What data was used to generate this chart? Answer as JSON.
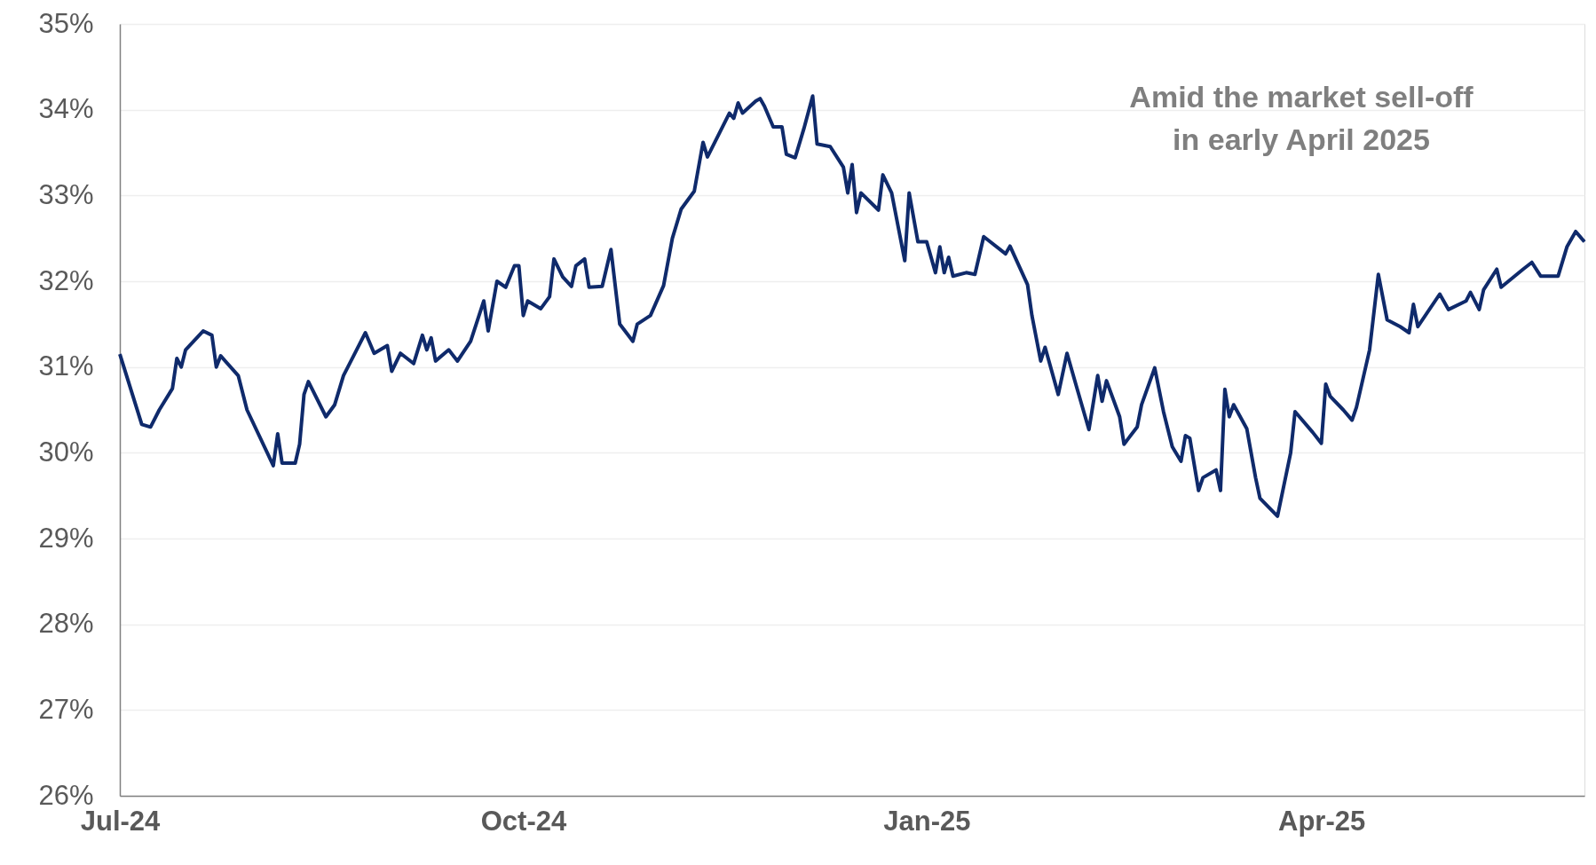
{
  "chart_data": {
    "type": "line",
    "annotations": [
      "Amid the market sell-off in early April 2025"
    ],
    "x": [
      "2024-07-01",
      "2024-07-06",
      "2024-07-08",
      "2024-07-10",
      "2024-07-13",
      "2024-07-14",
      "2024-07-15",
      "2024-07-16",
      "2024-07-20",
      "2024-07-22",
      "2024-07-23",
      "2024-07-24",
      "2024-07-28",
      "2024-07-30",
      "2024-08-05",
      "2024-08-06",
      "2024-08-07",
      "2024-08-10",
      "2024-08-11",
      "2024-08-12",
      "2024-08-13",
      "2024-08-17",
      "2024-08-19",
      "2024-08-21",
      "2024-08-24",
      "2024-08-26",
      "2024-08-28",
      "2024-08-31",
      "2024-09-01",
      "2024-09-03",
      "2024-09-06",
      "2024-09-08",
      "2024-09-09",
      "2024-09-10",
      "2024-09-11",
      "2024-09-14",
      "2024-09-16",
      "2024-09-19",
      "2024-09-22",
      "2024-09-23",
      "2024-09-25",
      "2024-09-27",
      "2024-09-29",
      "2024-09-30",
      "2024-10-01",
      "2024-10-02",
      "2024-10-05",
      "2024-10-07",
      "2024-10-08",
      "2024-10-10",
      "2024-10-12",
      "2024-10-13",
      "2024-10-15",
      "2024-10-16",
      "2024-10-19",
      "2024-10-21",
      "2024-10-23",
      "2024-10-26",
      "2024-10-27",
      "2024-10-30",
      "2024-11-02",
      "2024-11-04",
      "2024-11-06",
      "2024-11-09",
      "2024-11-11",
      "2024-11-12",
      "2024-11-17",
      "2024-11-18",
      "2024-11-19",
      "2024-11-20",
      "2024-11-23",
      "2024-11-24",
      "2024-11-25",
      "2024-11-27",
      "2024-11-29",
      "2024-11-30",
      "2024-12-02",
      "2024-12-04",
      "2024-12-06",
      "2024-12-07",
      "2024-12-10",
      "2024-12-13",
      "2024-12-14",
      "2024-12-15",
      "2024-12-16",
      "2024-12-17",
      "2024-12-21",
      "2024-12-22",
      "2024-12-24",
      "2024-12-27",
      "2024-12-28",
      "2024-12-30",
      "2025-01-01",
      "2025-01-03",
      "2025-01-04",
      "2025-01-05",
      "2025-01-06",
      "2025-01-07",
      "2025-01-10",
      "2025-01-12",
      "2025-01-14",
      "2025-01-19",
      "2025-01-20",
      "2025-01-24",
      "2025-01-25",
      "2025-01-27",
      "2025-01-28",
      "2025-01-31",
      "2025-02-02",
      "2025-02-04",
      "2025-02-07",
      "2025-02-09",
      "2025-02-10",
      "2025-02-11",
      "2025-02-14",
      "2025-02-15",
      "2025-02-18",
      "2025-02-19",
      "2025-02-22",
      "2025-02-24",
      "2025-02-26",
      "2025-02-28",
      "2025-03-01",
      "2025-03-02",
      "2025-03-04",
      "2025-03-05",
      "2025-03-08",
      "2025-03-09",
      "2025-03-10",
      "2025-03-11",
      "2025-03-12",
      "2025-03-15",
      "2025-03-17",
      "2025-03-18",
      "2025-03-22",
      "2025-03-25",
      "2025-03-26",
      "2025-03-30",
      "2025-04-01",
      "2025-04-02",
      "2025-04-03",
      "2025-04-06",
      "2025-04-08",
      "2025-04-09",
      "2025-04-12",
      "2025-04-14",
      "2025-04-16",
      "2025-04-19",
      "2025-04-21",
      "2025-04-22",
      "2025-04-23",
      "2025-04-28",
      "2025-04-30",
      "2025-05-04",
      "2025-05-05",
      "2025-05-07",
      "2025-05-08",
      "2025-05-11",
      "2025-05-12",
      "2025-05-17",
      "2025-05-19",
      "2025-05-21",
      "2025-05-25",
      "2025-05-27",
      "2025-05-29",
      "2025-05-31"
    ],
    "series": [
      {
        "color": "#0f2a6b",
        "values": [
          31.15,
          30.33,
          30.3,
          30.5,
          30.75,
          31.1,
          31.0,
          31.2,
          31.42,
          31.37,
          31.0,
          31.13,
          30.9,
          30.5,
          29.85,
          30.22,
          29.88,
          29.88,
          30.1,
          30.68,
          30.83,
          30.42,
          30.56,
          30.9,
          31.2,
          31.4,
          31.16,
          31.25,
          30.95,
          31.16,
          31.04,
          31.37,
          31.2,
          31.34,
          31.07,
          31.2,
          31.07,
          31.3,
          31.77,
          31.42,
          32.0,
          31.93,
          32.18,
          32.18,
          31.6,
          31.77,
          31.68,
          31.82,
          32.26,
          32.05,
          31.94,
          32.18,
          32.26,
          31.93,
          31.94,
          32.37,
          31.5,
          31.3,
          31.5,
          31.6,
          31.95,
          32.5,
          32.84,
          33.05,
          33.62,
          33.45,
          33.96,
          33.9,
          34.08,
          33.96,
          34.1,
          34.13,
          34.04,
          33.8,
          33.8,
          33.48,
          33.44,
          33.78,
          34.16,
          33.6,
          33.57,
          33.33,
          33.03,
          33.36,
          32.8,
          33.03,
          32.83,
          33.24,
          33.03,
          32.24,
          33.03,
          32.46,
          32.46,
          32.1,
          32.4,
          32.1,
          32.28,
          32.06,
          32.1,
          32.08,
          32.52,
          32.32,
          32.41,
          31.96,
          31.6,
          31.07,
          31.23,
          30.68,
          31.16,
          30.8,
          30.27,
          30.9,
          30.6,
          30.84,
          30.42,
          30.1,
          30.3,
          30.56,
          30.99,
          30.48,
          30.07,
          29.9,
          30.2,
          30.17,
          29.56,
          29.71,
          29.8,
          29.56,
          30.74,
          30.42,
          30.56,
          30.28,
          29.71,
          29.47,
          29.26,
          30.0,
          30.48,
          30.24,
          30.11,
          30.8,
          30.66,
          30.5,
          30.38,
          30.53,
          31.2,
          32.08,
          31.55,
          31.47,
          31.4,
          31.73,
          31.47,
          31.85,
          31.67,
          31.77,
          31.87,
          31.67,
          31.9,
          32.14,
          31.93,
          32.14,
          32.22,
          32.06,
          32.06,
          32.4,
          32.58,
          32.46
        ]
      }
    ],
    "xlim": [
      "2024-07-01",
      "2025-05-31"
    ],
    "xticks": [
      {
        "value": "2024-07-01",
        "label": "Jul-24"
      },
      {
        "value": "2024-10-01",
        "label": "Oct-24"
      },
      {
        "value": "2025-01-01",
        "label": "Jan-25"
      },
      {
        "value": "2025-04-01",
        "label": "Apr-25"
      }
    ],
    "ylim": [
      26,
      35
    ],
    "yticks": [
      {
        "value": 26,
        "label": "26%"
      },
      {
        "value": 27,
        "label": "27%"
      },
      {
        "value": 28,
        "label": "28%"
      },
      {
        "value": 29,
        "label": "29%"
      },
      {
        "value": 30,
        "label": "30%"
      },
      {
        "value": 31,
        "label": "31%"
      },
      {
        "value": 32,
        "label": "32%"
      },
      {
        "value": 33,
        "label": "33%"
      },
      {
        "value": 34,
        "label": "34%"
      },
      {
        "value": 35,
        "label": "35%"
      }
    ],
    "grid": "y",
    "marker": "none",
    "line_style": "solid"
  }
}
